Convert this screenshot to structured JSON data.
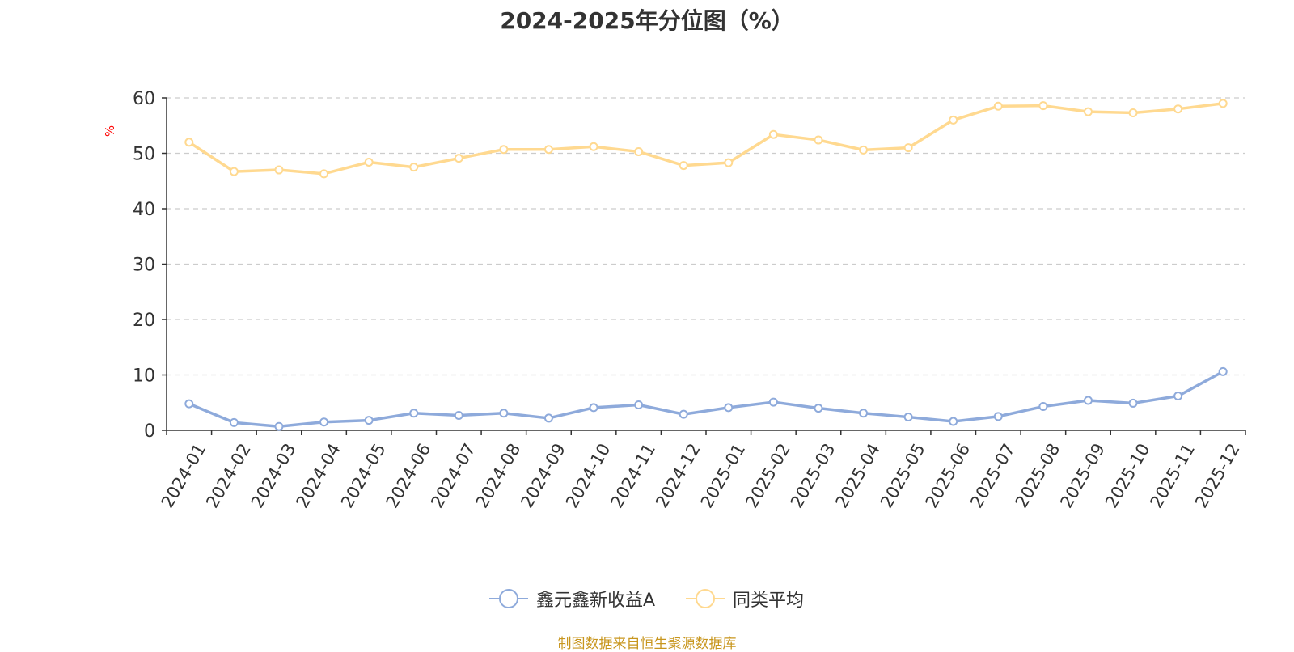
{
  "chart_data": {
    "type": "line",
    "title": "2024-2025年分位图（%）",
    "ylabel": "%",
    "xlabel": "",
    "ylim": [
      0,
      60
    ],
    "yticks": [
      0,
      10,
      20,
      30,
      40,
      50,
      60
    ],
    "grid": true,
    "legend_position": "bottom",
    "categories": [
      "2024-01",
      "2024-02",
      "2024-03",
      "2024-04",
      "2024-05",
      "2024-06",
      "2024-07",
      "2024-08",
      "2024-09",
      "2024-10",
      "2024-11",
      "2024-12",
      "2025-01",
      "2025-02",
      "2025-03",
      "2025-04",
      "2025-05",
      "2025-06",
      "2025-07",
      "2025-08",
      "2025-09",
      "2025-10",
      "2025-11",
      "2025-12"
    ],
    "series": [
      {
        "name": "鑫元鑫新收益A",
        "color": "#8eaadb",
        "values": [
          4.8,
          1.4,
          0.7,
          1.5,
          1.8,
          3.1,
          2.7,
          3.1,
          2.2,
          4.1,
          4.6,
          2.9,
          4.1,
          5.1,
          4.0,
          3.1,
          2.4,
          1.6,
          2.5,
          4.3,
          5.4,
          4.9,
          6.2,
          10.6
        ]
      },
      {
        "name": "同类平均",
        "color": "#ffd990",
        "values": [
          52.0,
          46.7,
          47.0,
          46.3,
          48.4,
          47.5,
          49.1,
          50.7,
          50.7,
          51.2,
          50.3,
          47.8,
          48.3,
          53.4,
          52.4,
          50.6,
          51.0,
          56.0,
          58.5,
          58.6,
          57.5,
          57.3,
          58.0,
          59.0
        ]
      }
    ]
  },
  "source_note": "制图数据来自恒生聚源数据库"
}
